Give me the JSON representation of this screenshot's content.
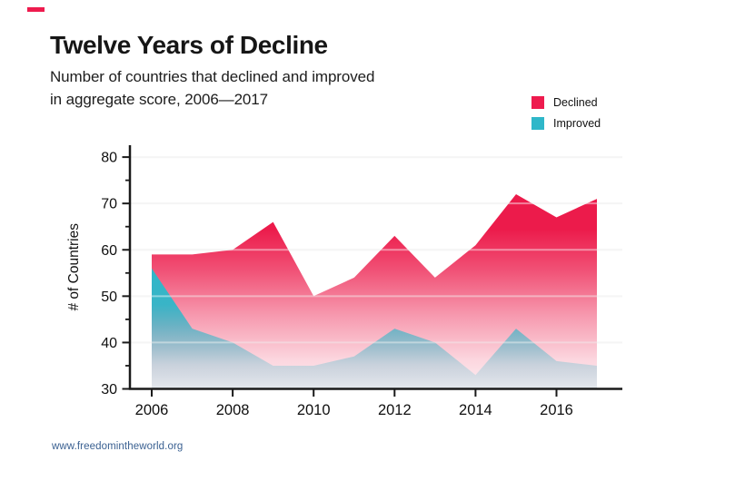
{
  "header": {
    "accent_dash_color": "#EE1B4E",
    "title": "Twelve Years of Decline",
    "subtitle_line1": "Number of countries that declined and improved",
    "subtitle_line2": "in aggregate score, 2006—2017"
  },
  "legend": {
    "items": [
      {
        "label": "Declined",
        "color": "#EE1B4E"
      },
      {
        "label": "Improved",
        "color": "#2FB7C9"
      }
    ]
  },
  "footer": {
    "link": "www.freedomintheworld.org",
    "color": "#3A6091"
  },
  "chart_data": {
    "type": "area",
    "title": "Twelve Years of Decline",
    "subtitle": "Number of countries that declined and improved in aggregate score, 2006—2017",
    "x": [
      2006,
      2007,
      2008,
      2009,
      2010,
      2011,
      2012,
      2013,
      2014,
      2015,
      2016,
      2017
    ],
    "series": [
      {
        "name": "Declined",
        "color": "#EC1B4B",
        "values": [
          59,
          59,
          60,
          66,
          50,
          54,
          63,
          54,
          61,
          72,
          67,
          71
        ]
      },
      {
        "name": "Improved",
        "color": "#2FB7C9",
        "values": [
          56,
          43,
          40,
          35,
          35,
          37,
          43,
          40,
          33,
          43,
          36,
          35
        ]
      }
    ],
    "ylabel": "# of Countries",
    "ylim": [
      30,
      82
    ],
    "yticks_major": [
      30,
      40,
      50,
      60,
      70,
      80
    ],
    "yticks_minor": [
      35,
      45,
      55,
      65,
      75
    ],
    "gridline_values": [
      40,
      50,
      60,
      70,
      80
    ],
    "xticks": [
      2006,
      2008,
      2010,
      2012,
      2014,
      2016
    ],
    "grid": "horizontal",
    "legend_position": "top-right",
    "axis_color": "#1a1a1a",
    "gridline_color": "#ededed"
  }
}
